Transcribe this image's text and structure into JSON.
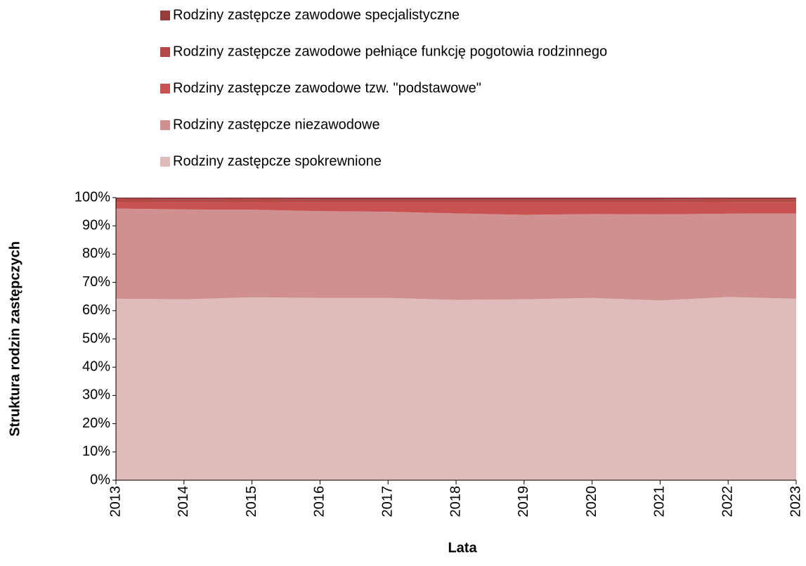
{
  "chart_data": {
    "type": "stacked_area",
    "x": [
      2013,
      2014,
      2015,
      2016,
      2017,
      2018,
      2019,
      2020,
      2021,
      2022,
      2023
    ],
    "xlim": [
      2013,
      2023
    ],
    "xticks": [
      2013,
      2014,
      2015,
      2016,
      2017,
      2018,
      2019,
      2020,
      2021,
      2022,
      2023
    ],
    "ylim": [
      0,
      100
    ],
    "yticks": [
      {
        "value": 0,
        "label": "0%"
      },
      {
        "value": 10,
        "label": "10%"
      },
      {
        "value": 20,
        "label": "20%"
      },
      {
        "value": 30,
        "label": "30%"
      },
      {
        "value": 40,
        "label": "40%"
      },
      {
        "value": 50,
        "label": "50%"
      },
      {
        "value": 60,
        "label": "60%"
      },
      {
        "value": 70,
        "label": "70%"
      },
      {
        "value": 80,
        "label": "80%"
      },
      {
        "value": 90,
        "label": "90%"
      },
      {
        "value": 100,
        "label": "100%"
      }
    ],
    "x_label": "Lata",
    "y_label": "Struktura rodzin zastępczych",
    "legend": "top",
    "series": [
      {
        "name": "Rodziny zastępcze spokrewnione",
        "color": "#e0bbbb",
        "values": [
          64.2,
          64.0,
          64.7,
          64.5,
          64.5,
          63.8,
          64.0,
          64.5,
          63.6,
          64.8,
          64.2
        ]
      },
      {
        "name": "Rodziny zastępcze niezawodowe",
        "color": "#d09090",
        "values": [
          31.9,
          31.8,
          31.0,
          30.7,
          30.5,
          30.6,
          29.9,
          29.7,
          30.5,
          29.5,
          30.2
        ]
      },
      {
        "name": "Rodziny zastępcze zawodowe tzw. \"podstawowe\"",
        "color": "#c85252",
        "values": [
          2.3,
          2.5,
          2.7,
          3.1,
          3.3,
          3.9,
          4.4,
          4.1,
          4.2,
          4.1,
          4.0
        ]
      },
      {
        "name": "Rodziny zastępcze zawodowe pełniące funkcję pogotowia rodzinnego",
        "color": "#b44848",
        "values": [
          1.0,
          1.0,
          1.0,
          1.0,
          1.0,
          1.0,
          1.0,
          1.0,
          1.0,
          1.0,
          1.0
        ]
      },
      {
        "name": "Rodziny zastępcze zawodowe specjalistyczne",
        "color": "#963c3c",
        "values": [
          0.6,
          0.7,
          0.6,
          0.7,
          0.7,
          0.7,
          0.7,
          0.7,
          0.7,
          0.6,
          0.6
        ]
      }
    ]
  }
}
